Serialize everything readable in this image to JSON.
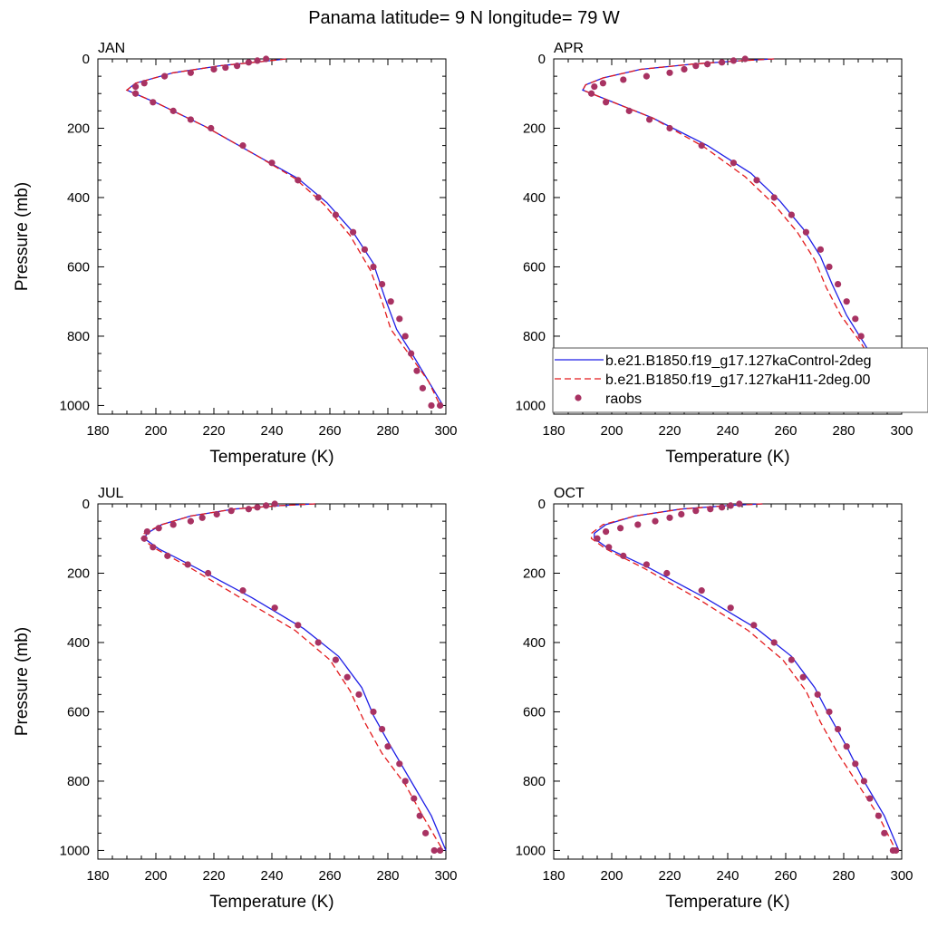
{
  "figure": {
    "title": "Panama  latitude= 9 N longitude= 79 W"
  },
  "colors": {
    "control": "#1f1fe6",
    "h11": "#e31a1c",
    "raobs": "#a83262"
  },
  "legend": {
    "placement": "right, overlapping APR panel",
    "entries": [
      {
        "label": "b.e21.B1850.f19_g17.127kaControl-2deg",
        "style": "solid-line",
        "color": "#1f1fe6"
      },
      {
        "label": "b.e21.B1850.f19_g17.127kaH11-2deg.00",
        "style": "dashed-line",
        "color": "#e31a1c"
      },
      {
        "label": "raobs",
        "style": "dot",
        "color": "#a83262"
      }
    ]
  },
  "chart_data": [
    {
      "type": "line",
      "panel": "JAN",
      "xlabel": "Temperature (K)",
      "ylabel": "Pressure (mb)",
      "xlim": [
        180,
        300
      ],
      "ylim": [
        1025,
        0
      ],
      "xticks": [
        180,
        200,
        220,
        240,
        260,
        280,
        300
      ],
      "yticks": [
        0,
        200,
        400,
        600,
        800,
        1000
      ],
      "series": [
        {
          "name": "b.e21.B1850.f19_g17.127kaControl-2deg",
          "style": "solid",
          "x": [
            245,
            236,
            222,
            206,
            193,
            190,
            201,
            217,
            235,
            249,
            259,
            268,
            275,
            279,
            283,
            289,
            294,
            299
          ],
          "y": [
            0,
            8,
            20,
            40,
            70,
            90,
            130,
            195,
            280,
            345,
            415,
            500,
            590,
            690,
            780,
            860,
            930,
            1000
          ]
        },
        {
          "name": "b.e21.B1850.f19_g17.127kaH11-2deg.00",
          "style": "dashed",
          "x": [
            245,
            236,
            222,
            206,
            193,
            190,
            201,
            217,
            235,
            248,
            258,
            267,
            274,
            278,
            281,
            288,
            294,
            298
          ],
          "y": [
            0,
            8,
            20,
            40,
            70,
            90,
            130,
            195,
            280,
            345,
            420,
            510,
            610,
            700,
            780,
            860,
            930,
            1000
          ]
        },
        {
          "name": "raobs",
          "style": "dots",
          "x": [
            238,
            235,
            232,
            228,
            224,
            220,
            212,
            203,
            196,
            193,
            193,
            199,
            206,
            212,
            219,
            230,
            240,
            249,
            256,
            262,
            268,
            272,
            275,
            278,
            281,
            284,
            286,
            288,
            290,
            292,
            295,
            298
          ],
          "y": [
            0,
            5,
            10,
            20,
            25,
            30,
            40,
            50,
            70,
            80,
            100,
            125,
            150,
            175,
            200,
            250,
            300,
            350,
            400,
            450,
            500,
            550,
            600,
            650,
            700,
            750,
            800,
            850,
            900,
            950,
            1000,
            1000
          ]
        }
      ]
    },
    {
      "type": "line",
      "panel": "APR",
      "xlabel": "Temperature (K)",
      "ylabel": "",
      "xlim": [
        180,
        300
      ],
      "ylim": [
        1025,
        0
      ],
      "xticks": [
        180,
        200,
        220,
        240,
        260,
        280,
        300
      ],
      "yticks": [
        0,
        200,
        400,
        600,
        800,
        1000
      ],
      "series": [
        {
          "name": "b.e21.B1850.f19_g17.127kaControl-2deg",
          "style": "solid",
          "x": [
            256,
            245,
            228,
            210,
            197,
            191,
            190,
            199,
            214,
            233,
            248,
            258,
            266,
            272,
            276,
            281,
            287,
            294,
            300
          ],
          "y": [
            0,
            5,
            15,
            30,
            55,
            75,
            90,
            120,
            170,
            250,
            330,
            410,
            490,
            570,
            650,
            740,
            820,
            920,
            1000
          ]
        },
        {
          "name": "b.e21.B1850.f19_g17.127kaH11-2deg.00",
          "style": "dashed",
          "x": [
            256,
            245,
            228,
            210,
            197,
            191,
            190,
            199,
            214,
            232,
            246,
            256,
            264,
            270,
            274,
            279,
            286,
            293,
            300
          ],
          "y": [
            0,
            5,
            15,
            30,
            55,
            75,
            90,
            120,
            170,
            255,
            340,
            420,
            500,
            580,
            660,
            740,
            820,
            920,
            1000
          ]
        },
        {
          "name": "raobs",
          "style": "dots",
          "x": [
            246,
            242,
            238,
            233,
            229,
            225,
            220,
            212,
            204,
            197,
            194,
            193,
            198,
            206,
            213,
            220,
            231,
            242,
            250,
            256,
            262,
            267,
            272,
            275,
            278,
            281,
            284,
            286,
            289,
            291,
            294,
            297,
            300
          ],
          "y": [
            0,
            5,
            10,
            15,
            20,
            30,
            40,
            50,
            60,
            70,
            80,
            100,
            125,
            150,
            175,
            200,
            250,
            300,
            350,
            400,
            450,
            500,
            550,
            600,
            650,
            700,
            750,
            800,
            850,
            900,
            950,
            1000,
            1000
          ]
        }
      ]
    },
    {
      "type": "line",
      "panel": "JUL",
      "xlabel": "Temperature (K)",
      "ylabel": "Pressure (mb)",
      "xlim": [
        180,
        300
      ],
      "ylim": [
        1025,
        0
      ],
      "xticks": [
        180,
        200,
        220,
        240,
        260,
        280,
        300
      ],
      "yticks": [
        0,
        200,
        400,
        600,
        800,
        1000
      ],
      "series": [
        {
          "name": "b.e21.B1850.f19_g17.127kaControl-2deg",
          "style": "solid",
          "x": [
            255,
            243,
            227,
            212,
            202,
            197,
            196,
            201,
            214,
            233,
            251,
            263,
            271,
            275,
            281,
            288,
            295,
            300
          ],
          "y": [
            0,
            5,
            15,
            35,
            60,
            85,
            100,
            130,
            185,
            270,
            360,
            440,
            530,
            610,
            700,
            800,
            900,
            1000
          ]
        },
        {
          "name": "b.e21.B1850.f19_g17.127kaH11-2deg.00",
          "style": "dashed",
          "x": [
            255,
            243,
            227,
            212,
            202,
            196,
            195,
            200,
            212,
            230,
            248,
            260,
            267,
            272,
            278,
            286,
            292,
            299
          ],
          "y": [
            0,
            5,
            15,
            35,
            60,
            85,
            100,
            130,
            185,
            275,
            365,
            450,
            540,
            630,
            720,
            810,
            900,
            1000
          ]
        },
        {
          "name": "raobs",
          "style": "dots",
          "x": [
            241,
            238,
            235,
            232,
            226,
            221,
            216,
            212,
            206,
            201,
            197,
            196,
            199,
            204,
            211,
            218,
            230,
            241,
            249,
            256,
            262,
            266,
            270,
            275,
            278,
            280,
            284,
            286,
            289,
            291,
            293,
            296,
            298
          ],
          "y": [
            0,
            5,
            10,
            15,
            20,
            30,
            40,
            50,
            60,
            70,
            80,
            100,
            125,
            150,
            175,
            200,
            250,
            300,
            350,
            400,
            450,
            500,
            550,
            600,
            650,
            700,
            750,
            800,
            850,
            900,
            950,
            1000,
            1000
          ]
        }
      ]
    },
    {
      "type": "line",
      "panel": "OCT",
      "xlabel": "Temperature (K)",
      "ylabel": "",
      "xlim": [
        180,
        300
      ],
      "ylim": [
        1025,
        0
      ],
      "xticks": [
        180,
        200,
        220,
        240,
        260,
        280,
        300
      ],
      "yticks": [
        0,
        200,
        400,
        600,
        800,
        1000
      ],
      "series": [
        {
          "name": "b.e21.B1850.f19_g17.127kaControl-2deg",
          "style": "solid",
          "x": [
            252,
            240,
            224,
            208,
            198,
            194,
            194,
            199,
            213,
            232,
            250,
            262,
            270,
            275,
            281,
            287,
            294,
            299
          ],
          "y": [
            0,
            5,
            15,
            35,
            60,
            85,
            100,
            130,
            185,
            270,
            360,
            440,
            530,
            610,
            700,
            800,
            900,
            1000
          ]
        },
        {
          "name": "b.e21.B1850.f19_g17.127kaH11-2deg.00",
          "style": "dashed",
          "x": [
            252,
            240,
            224,
            208,
            197,
            193,
            193,
            198,
            211,
            230,
            247,
            259,
            267,
            272,
            278,
            285,
            292,
            298
          ],
          "y": [
            0,
            5,
            15,
            35,
            60,
            85,
            100,
            130,
            185,
            275,
            365,
            450,
            540,
            630,
            720,
            810,
            900,
            1000
          ]
        },
        {
          "name": "raobs",
          "style": "dots",
          "x": [
            244,
            241,
            238,
            234,
            229,
            224,
            220,
            215,
            209,
            203,
            198,
            195,
            199,
            204,
            212,
            219,
            231,
            241,
            249,
            256,
            262,
            266,
            271,
            275,
            278,
            281,
            284,
            287,
            289,
            292,
            294,
            297,
            298
          ],
          "y": [
            0,
            5,
            10,
            15,
            20,
            30,
            40,
            50,
            60,
            70,
            80,
            100,
            125,
            150,
            175,
            200,
            250,
            300,
            350,
            400,
            450,
            500,
            550,
            600,
            650,
            700,
            750,
            800,
            850,
            900,
            950,
            1000,
            1000
          ]
        }
      ]
    }
  ]
}
